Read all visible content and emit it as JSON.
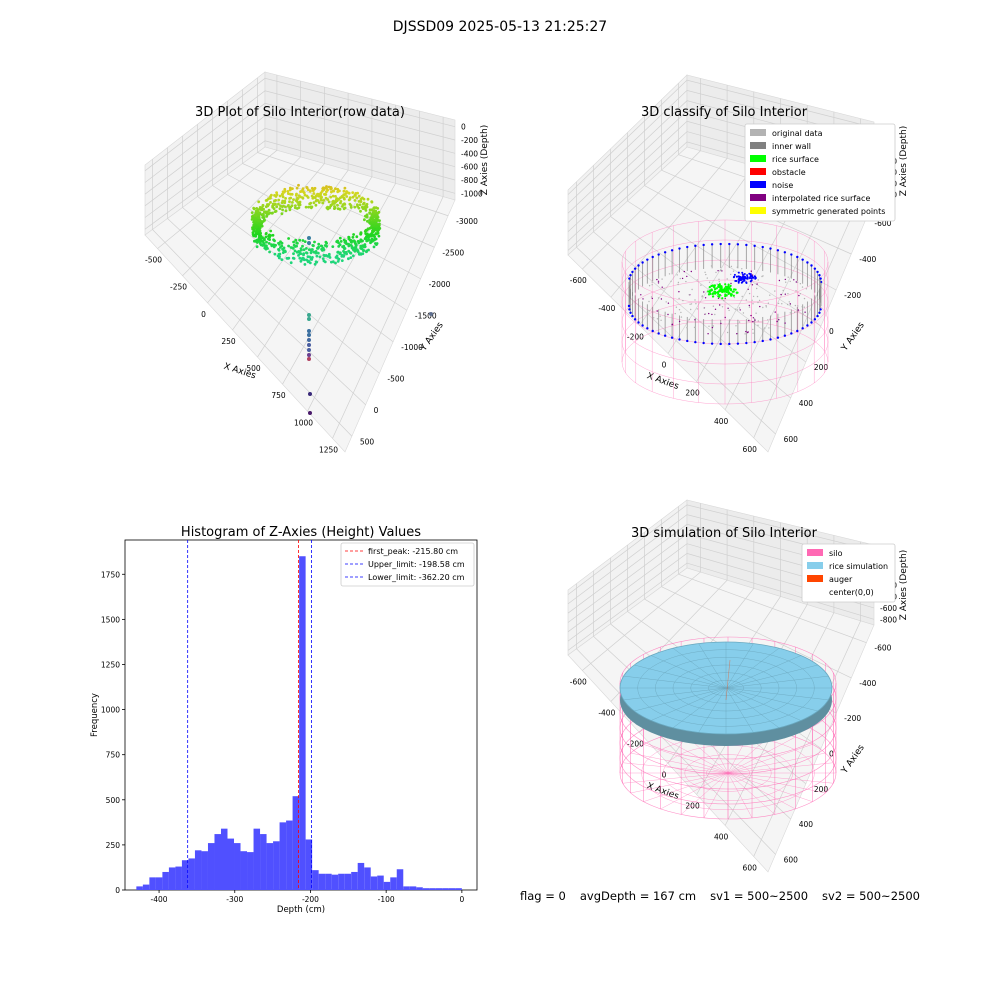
{
  "suptitle": "DJSSD09 2025-05-13 21:25:27",
  "footer": {
    "flag": "flag = 0",
    "avg_depth": "avgDepth = 167 cm",
    "sv1": "sv1 = 500~2500",
    "sv2": "sv2 = 500~2500"
  },
  "colors": {
    "original_data": "#b3b3b3",
    "inner_wall": "#808080",
    "rice_surface": "#00ff00",
    "obstacle": "#ff0000",
    "noise": "#0000ff",
    "interpolated_rice_surface": "#800080",
    "symmetric_generated_points": "#ffff00",
    "silo": "#ff69b4",
    "rice_simulation": "#87ceeb",
    "auger": "#ff4500",
    "histogram_bars": "#5050ff",
    "first_peak_line": "#ff0000",
    "limit_lines": "#0000ff"
  },
  "chart_data": [
    {
      "type": "scatter",
      "title": "3D Plot of Silo Interior(row data)",
      "xlabel": "X Axies",
      "ylabel": "Y Axies",
      "zlabel": "Z Axies (Depth)",
      "x_ticks": [
        "-500",
        "-250",
        "0",
        "250",
        "500",
        "750",
        "1000",
        "1250"
      ],
      "y_ticks": [
        "500",
        "0",
        "-500",
        "-1000",
        "-1500",
        "-2000",
        "-2500",
        "-3000"
      ],
      "z_ticks": [
        "0",
        "-200",
        "-400",
        "-600",
        "-800",
        "-1000"
      ]
    },
    {
      "type": "scatter",
      "title": "3D classify of Silo Interior",
      "xlabel": "X Axies",
      "ylabel": "Y Axies",
      "zlabel": "Z Axies (Depth)",
      "x_ticks": [
        "-600",
        "-400",
        "-200",
        "0",
        "200",
        "400",
        "600"
      ],
      "y_ticks": [
        "600",
        "400",
        "200",
        "0",
        "-200",
        "-400",
        "-600"
      ],
      "z_ticks": [
        "400",
        "200",
        "0",
        "-200",
        "-400",
        "-600",
        "-800"
      ],
      "legend": [
        "original data",
        "inner wall",
        "rice surface",
        "obstacle",
        "noise",
        "interpolated rice surface",
        "symmetric generated points"
      ],
      "legend_position": "top-right"
    },
    {
      "type": "bar",
      "title": "Histogram of Z-Axies (Height) Values",
      "xlabel": "Depth (cm)",
      "ylabel": "Frequency",
      "xlim": [
        -445,
        20
      ],
      "ylim": [
        0,
        1940
      ],
      "x_ticks": [
        -400,
        -300,
        -200,
        -100,
        0
      ],
      "y_ticks": [
        0,
        250,
        500,
        750,
        1000,
        1250,
        1500,
        1750
      ],
      "bin_start": -430,
      "bin_width": 8.6,
      "values": [
        20,
        30,
        70,
        70,
        100,
        125,
        130,
        165,
        175,
        220,
        215,
        260,
        310,
        340,
        285,
        260,
        215,
        210,
        340,
        310,
        260,
        270,
        375,
        385,
        520,
        1850,
        280,
        110,
        90,
        90,
        85,
        90,
        90,
        100,
        150,
        125,
        75,
        80,
        45,
        70,
        115,
        20,
        20,
        15,
        10,
        10,
        10,
        10,
        10,
        10
      ],
      "vlines": [
        {
          "label": "first_peak: -215.80 cm",
          "x": -215.8,
          "color": "#ff0000"
        },
        {
          "label": "Upper_limit: -198.58 cm",
          "x": -198.58,
          "color": "#0000ff"
        },
        {
          "label": "Lower_limit: -362.20 cm",
          "x": -362.2,
          "color": "#0000ff"
        }
      ],
      "legend_position": "top-right"
    },
    {
      "type": "area",
      "title": "3D simulation of Silo Interior",
      "xlabel": "X Axies",
      "ylabel": "Y Axies",
      "zlabel": "Z Axies (Depth)",
      "x_ticks": [
        "-600",
        "-400",
        "-200",
        "0",
        "200",
        "400",
        "600"
      ],
      "y_ticks": [
        "600",
        "400",
        "200",
        "0",
        "-200",
        "-400",
        "-600"
      ],
      "z_ticks": [
        "400",
        "200",
        "0",
        "-200",
        "-400",
        "-600",
        "-800"
      ],
      "legend": [
        "silo",
        "rice simulation",
        "auger",
        "center(0,0)"
      ],
      "legend_position": "top-right"
    }
  ]
}
